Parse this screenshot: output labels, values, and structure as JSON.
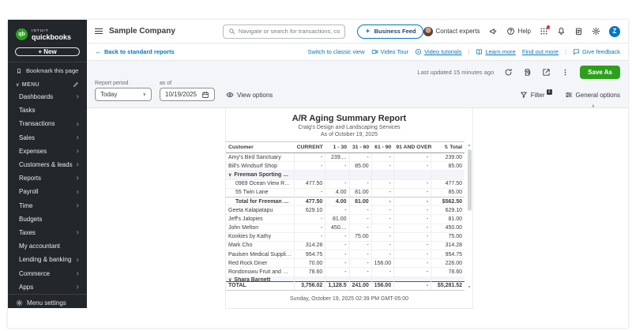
{
  "colors": {
    "brand_green": "#2ca01c",
    "link_blue": "#0077c5",
    "sidebar_bg": "#23272b",
    "toolbar_bg": "#f4f5f8",
    "text_dark": "#393a3d",
    "text_muted": "#6b6c72",
    "alert_red": "#e0353f"
  },
  "sidebar": {
    "logo_top": "INTUIT",
    "logo": "quickbooks",
    "logo_badge": "qb",
    "new_button": "+ New",
    "bookmark": "Bookmark this page",
    "menu": "MENU",
    "items": [
      {
        "label": "Dashboards",
        "chevron": true
      },
      {
        "label": "Tasks",
        "chevron": false
      },
      {
        "label": "Transactions",
        "chevron": true
      },
      {
        "label": "Sales",
        "chevron": true
      },
      {
        "label": "Expenses",
        "chevron": true
      },
      {
        "label": "Customers & leads",
        "chevron": true
      },
      {
        "label": "Reports",
        "chevron": true
      },
      {
        "label": "Payroll",
        "chevron": true
      },
      {
        "label": "Time",
        "chevron": true
      },
      {
        "label": "Budgets",
        "chevron": false
      },
      {
        "label": "Taxes",
        "chevron": true
      },
      {
        "label": "My accountant",
        "chevron": false
      },
      {
        "label": "Lending & banking",
        "chevron": true
      },
      {
        "label": "Commerce",
        "chevron": true
      },
      {
        "label": "Apps",
        "chevron": true
      }
    ],
    "menu_settings": "Menu settings"
  },
  "header": {
    "company_name": "Sample Company",
    "search_placeholder": "Navigate or search for transactions, contac",
    "business_feed": "Business Feed",
    "contact_experts": "Contact experts",
    "help": "Help",
    "user_initial": "Z"
  },
  "subheader": {
    "back": "Back to standard reports",
    "links": [
      {
        "label": "Switch to classic view",
        "icon": "",
        "underline": false,
        "divider": false
      },
      {
        "label": "Video Tour",
        "icon": "video",
        "underline": false,
        "divider": false
      },
      {
        "label": "Video tutorials",
        "icon": "play",
        "underline": true,
        "divider": true
      },
      {
        "label": "Learn more",
        "icon": "book",
        "underline": true,
        "divider": false
      },
      {
        "label": "Find out more",
        "icon": "",
        "underline": true,
        "divider": true
      },
      {
        "label": "Give feedback",
        "icon": "chat",
        "underline": false,
        "divider": false
      }
    ]
  },
  "toolbar": {
    "last_updated": "Last updated 15 minutes ago",
    "save_as": "Save As",
    "report_period_label": "Report period",
    "report_period_value": "Today",
    "as_of_label": "as of",
    "as_of_value": "10/19/2025",
    "view_options": "View options",
    "filter": "Filter",
    "filter_count": "1",
    "general_options": "General options"
  },
  "report": {
    "title": "A/R Aging Summary Report",
    "subtitle": "Craig's Design and Landscaping Services",
    "as_of": "As of October 19, 2025",
    "footer": "Sunday, October 19, 2025 02:39 PM GMT-05:00",
    "sort_icon": "⇅",
    "columns": [
      "Customer",
      "CURRENT",
      "1 - 30",
      "31 - 60",
      "61 - 90",
      "91 AND OVER",
      "Total"
    ],
    "rows": [
      {
        "name": "Amy's Bird Sanctuary",
        "type": "normal",
        "values": [
          "-",
          "239....",
          "-",
          "-",
          "-",
          "239.00"
        ]
      },
      {
        "name": "Bill's Windsurf Shop",
        "type": "normal",
        "values": [
          "-",
          "-",
          "85.00",
          "-",
          "-",
          "85.00"
        ]
      },
      {
        "name": "Freeman Sporting Goods",
        "type": "group",
        "values": [
          "",
          "",
          "",
          "",
          "",
          ""
        ]
      },
      {
        "name": "0969 Ocean View Road",
        "type": "sub",
        "values": [
          "477.50",
          "-",
          "-",
          "-",
          "-",
          "477.50"
        ]
      },
      {
        "name": "55 Twin Lane",
        "type": "sub",
        "values": [
          "-",
          "4.00",
          "81.00",
          "-",
          "-",
          "85.00"
        ]
      },
      {
        "name": "Total for Freeman Sporting G...",
        "type": "subtotal",
        "values": [
          "477.50",
          "4.00",
          "81.00",
          "-",
          "-",
          "$562.50"
        ]
      },
      {
        "name": "Geeta Kalapatapu",
        "type": "normal",
        "values": [
          "629.10",
          "-",
          "-",
          "-",
          "-",
          "629.10"
        ]
      },
      {
        "name": "Jeff's Jalopies",
        "type": "normal",
        "values": [
          "-",
          "81.00",
          "-",
          "-",
          "-",
          "81.00"
        ]
      },
      {
        "name": "John Melton",
        "type": "normal",
        "values": [
          "-",
          "450....",
          "-",
          "-",
          "-",
          "450.00"
        ]
      },
      {
        "name": "Kookies by Kathy",
        "type": "normal",
        "values": [
          "-",
          "-",
          "75.00",
          "-",
          "-",
          "75.00"
        ]
      },
      {
        "name": "Mark Cho",
        "type": "normal",
        "values": [
          "314.28",
          "-",
          "-",
          "-",
          "-",
          "314.28"
        ]
      },
      {
        "name": "Paulsen Medical Supplies",
        "type": "normal",
        "values": [
          "954.75",
          "-",
          "-",
          "-",
          "-",
          "954.75"
        ]
      },
      {
        "name": "Red Rock Diner",
        "type": "normal",
        "values": [
          "70.00",
          "-",
          "-",
          "156.00",
          "-",
          "226.00"
        ]
      },
      {
        "name": "Rondonuwu Fruit and Vegi",
        "type": "normal",
        "values": [
          "78.60",
          "-",
          "-",
          "-",
          "-",
          "78.60"
        ]
      },
      {
        "name": "Shara Barnett",
        "type": "group-clipped",
        "values": [
          "",
          "",
          "",
          "",
          "",
          ""
        ]
      },
      {
        "name": "TOTAL",
        "type": "total",
        "values": [
          "3,756.02",
          "1,128.5",
          "241.00",
          "156.00",
          "-",
          "$5,281.52"
        ]
      }
    ]
  }
}
